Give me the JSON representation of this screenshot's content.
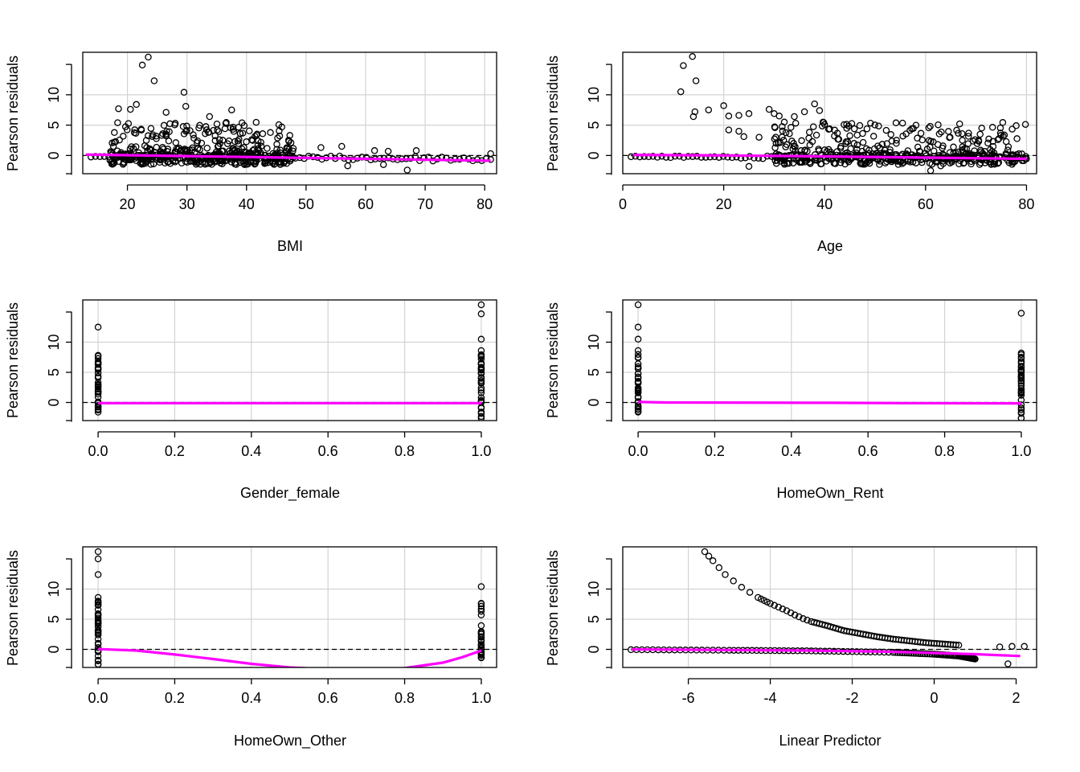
{
  "colors": {
    "smooth": "#ff00ff",
    "points": "#000000",
    "grid": "#d3d3d3",
    "reference_line": "#000000"
  },
  "chart_data": [
    {
      "type": "scatter",
      "title": "",
      "xlabel": "BMI",
      "ylabel": "Pearson residuals",
      "xlim": [
        12.5,
        82
      ],
      "ylim": [
        -3,
        17
      ],
      "xticks": [
        20,
        30,
        40,
        50,
        60,
        70,
        80
      ],
      "yticks": [
        0,
        5,
        10
      ],
      "grid": true,
      "reference_y": 0,
      "outliers": [
        [
          20.5,
          7.6
        ],
        [
          21.5,
          8.4
        ],
        [
          22.5,
          14.9
        ],
        [
          23.5,
          16.2
        ],
        [
          24.5,
          12.3
        ],
        [
          26.5,
          7.1
        ],
        [
          29.5,
          10.4
        ],
        [
          29.8,
          8.1
        ],
        [
          37.5,
          7.5
        ],
        [
          33.8,
          6.4
        ],
        [
          18.5,
          7.7
        ],
        [
          61.5,
          0.8
        ],
        [
          63.8,
          0.7
        ],
        [
          68.5,
          0.8
        ],
        [
          81,
          0.3
        ],
        [
          52.5,
          1.3
        ],
        [
          57,
          -1.7
        ],
        [
          63,
          -1.5
        ],
        [
          67,
          -2.4
        ],
        [
          56,
          1.5
        ]
      ],
      "cluster": {
        "x_range": [
          17,
          48
        ],
        "upper_y_range": [
          0,
          5.5
        ],
        "lower_y_range": [
          -1.5,
          0
        ]
      },
      "smooth": [
        [
          13,
          0.15
        ],
        [
          20,
          0.05
        ],
        [
          30,
          -0.1
        ],
        [
          40,
          -0.25
        ],
        [
          50,
          -0.4
        ],
        [
          60,
          -0.55
        ],
        [
          70,
          -0.7
        ],
        [
          81,
          -0.85
        ]
      ]
    },
    {
      "type": "scatter",
      "title": "",
      "xlabel": "Age",
      "ylabel": "Pearson residuals",
      "xlim": [
        0,
        82
      ],
      "ylim": [
        -3,
        17
      ],
      "xticks": [
        0,
        20,
        40,
        60,
        80
      ],
      "yticks": [
        0,
        5,
        10
      ],
      "grid": true,
      "reference_y": 0,
      "outliers": [
        [
          11.5,
          10.5
        ],
        [
          12,
          14.8
        ],
        [
          13.8,
          16.3
        ],
        [
          14.5,
          12.3
        ],
        [
          14,
          6.4
        ],
        [
          14.3,
          7.2
        ],
        [
          17,
          7.5
        ],
        [
          20,
          8.2
        ],
        [
          21,
          6.5
        ],
        [
          21,
          4.2
        ],
        [
          23,
          6.6
        ],
        [
          23,
          4.0
        ],
        [
          24,
          3.1
        ],
        [
          25,
          6.9
        ],
        [
          25,
          -1.8
        ],
        [
          27,
          3.0
        ],
        [
          29,
          7.6
        ],
        [
          30,
          6.9
        ],
        [
          31,
          6.5
        ],
        [
          32,
          5.5
        ],
        [
          34,
          6.4
        ],
        [
          36,
          7.2
        ],
        [
          38,
          8.5
        ],
        [
          39,
          7.4
        ],
        [
          40,
          5.1
        ],
        [
          61,
          -2.5
        ],
        [
          63,
          -1.7
        ]
      ],
      "cluster": {
        "x_range": [
          30,
          80
        ],
        "upper_y_range": [
          0,
          5.5
        ],
        "lower_y_range": [
          -1.5,
          0
        ]
      },
      "smooth": [
        [
          2,
          0.1
        ],
        [
          20,
          0.0
        ],
        [
          40,
          -0.15
        ],
        [
          60,
          -0.35
        ],
        [
          80,
          -0.55
        ]
      ]
    },
    {
      "type": "scatter",
      "title": "",
      "xlabel": "Gender_female",
      "ylabel": "Pearson residuals",
      "xlim": [
        -0.04,
        1.04
      ],
      "ylim": [
        -3,
        17
      ],
      "xticks": [
        "0.0",
        "0.2",
        "0.4",
        "0.6",
        "0.8",
        "1.0"
      ],
      "yticks": [
        0,
        5,
        10
      ],
      "grid": true,
      "reference_y": 0,
      "columns": [
        {
          "x": 0,
          "values": [
            12.5,
            7.7,
            7.3,
            6.5,
            5.7,
            4.9,
            4.1,
            3.3,
            2.5,
            1.7,
            0.9,
            0.1,
            -0.7,
            -1.1,
            -1.6
          ]
        },
        {
          "x": 1,
          "values": [
            16.2,
            14.7,
            10.5,
            8.6,
            7.9,
            7.2,
            6.4,
            5.6,
            4.8,
            4.0,
            3.2,
            2.4,
            1.6,
            0.8,
            0.0,
            -0.8,
            -1.6,
            -2.6
          ]
        }
      ],
      "smooth": [
        [
          0,
          -0.1
        ],
        [
          1,
          -0.1
        ]
      ]
    },
    {
      "type": "scatter",
      "title": "",
      "xlabel": "HomeOwn_Rent",
      "ylabel": "Pearson residuals",
      "xlim": [
        -0.04,
        1.04
      ],
      "ylim": [
        -3,
        17
      ],
      "xticks": [
        "0.0",
        "0.2",
        "0.4",
        "0.6",
        "0.8",
        "1.0"
      ],
      "yticks": [
        0,
        5,
        10
      ],
      "grid": true,
      "reference_y": 0,
      "columns": [
        {
          "x": 0,
          "values": [
            16.2,
            12.5,
            10.5,
            8.6,
            7.5,
            6.4,
            5.6,
            4.8,
            4.0,
            3.2,
            2.4,
            1.6,
            0.8,
            0.0,
            -0.8,
            -1.6
          ]
        },
        {
          "x": 1,
          "values": [
            14.8,
            8.2,
            7.5,
            6.8,
            6.0,
            5.2,
            4.4,
            3.6,
            2.8,
            2.0,
            1.2,
            0.4,
            -0.4,
            -1.2,
            -1.8,
            -2.6
          ]
        }
      ],
      "smooth": [
        [
          0,
          0.1
        ],
        [
          0.07,
          0.0
        ],
        [
          0.5,
          -0.05
        ],
        [
          0.7,
          -0.1
        ],
        [
          1,
          -0.15
        ]
      ]
    },
    {
      "type": "scatter",
      "title": "",
      "xlabel": "HomeOwn_Other",
      "ylabel": "Pearson residuals",
      "xlim": [
        -0.04,
        1.04
      ],
      "ylim": [
        -3,
        17
      ],
      "xticks": [
        "0.0",
        "0.2",
        "0.4",
        "0.6",
        "0.8",
        "1.0"
      ],
      "yticks": [
        0,
        5,
        10
      ],
      "grid": true,
      "reference_y": 0,
      "columns": [
        {
          "x": 0,
          "values": [
            16.2,
            15.0,
            12.4,
            8.6,
            8.0,
            7.3,
            6.6,
            5.9,
            5.2,
            4.5,
            3.8,
            3.1,
            2.4,
            1.7,
            1.0,
            0.3,
            -0.4,
            -1.1,
            -1.8,
            -2.5
          ]
        },
        {
          "x": 1,
          "values": [
            10.4,
            2.6,
            2.0,
            1.4,
            0.8,
            0.2,
            -0.4,
            -1.0,
            -1.4
          ]
        }
      ],
      "smooth": [
        [
          0,
          0.05
        ],
        [
          0.1,
          -0.2
        ],
        [
          0.2,
          -0.85
        ],
        [
          0.3,
          -1.6
        ],
        [
          0.4,
          -2.4
        ],
        [
          0.5,
          -3.0
        ],
        [
          0.6,
          -3.3
        ],
        [
          0.7,
          -3.4
        ],
        [
          0.8,
          -3.1
        ],
        [
          0.9,
          -2.2
        ],
        [
          0.95,
          -1.3
        ],
        [
          1.0,
          -0.2
        ]
      ]
    },
    {
      "type": "scatter",
      "title": "",
      "xlabel": "Linear Predictor",
      "ylabel": "Pearson residuals",
      "xlim": [
        -7.6,
        2.5
      ],
      "ylim": [
        -3,
        17
      ],
      "xticks": [
        -6,
        -4,
        -2,
        0,
        2
      ],
      "yticks": [
        0,
        5,
        10
      ],
      "grid": true,
      "reference_y": 0,
      "upper_curve": [
        [
          -5.6,
          16.2
        ],
        [
          -5.4,
          14.7
        ],
        [
          -5.1,
          12.4
        ],
        [
          -4.7,
          10.3
        ],
        [
          -4.3,
          8.6
        ],
        [
          -4.15,
          8.1
        ],
        [
          -4.0,
          7.6
        ],
        [
          -3.8,
          7.0
        ],
        [
          -3.6,
          6.4
        ],
        [
          -3.4,
          5.7
        ],
        [
          -3.2,
          5.1
        ],
        [
          -3.0,
          4.6
        ],
        [
          -2.6,
          3.9
        ],
        [
          -2.2,
          3.1
        ],
        [
          -1.8,
          2.6
        ],
        [
          -1.4,
          2.1
        ],
        [
          -1.0,
          1.7
        ],
        [
          -0.6,
          1.4
        ],
        [
          -0.2,
          1.1
        ],
        [
          0.2,
          0.9
        ],
        [
          0.6,
          0.7
        ]
      ],
      "lower_curve": [
        [
          -7.4,
          -0.05
        ],
        [
          -5,
          -0.15
        ],
        [
          -3,
          -0.25
        ],
        [
          -1,
          -0.5
        ],
        [
          0,
          -0.8
        ],
        [
          0.6,
          -1.1
        ],
        [
          1.0,
          -1.6
        ]
      ],
      "extra_points": [
        [
          1.6,
          0.4
        ],
        [
          1.8,
          -2.4
        ],
        [
          2.2,
          0.5
        ],
        [
          1.9,
          0.5
        ]
      ],
      "smooth": [
        [
          -7.4,
          0.0
        ],
        [
          -5,
          -0.1
        ],
        [
          -3,
          -0.2
        ],
        [
          -1,
          -0.4
        ],
        [
          0,
          -0.6
        ],
        [
          1,
          -0.8
        ],
        [
          2.1,
          -1.1
        ]
      ]
    }
  ]
}
